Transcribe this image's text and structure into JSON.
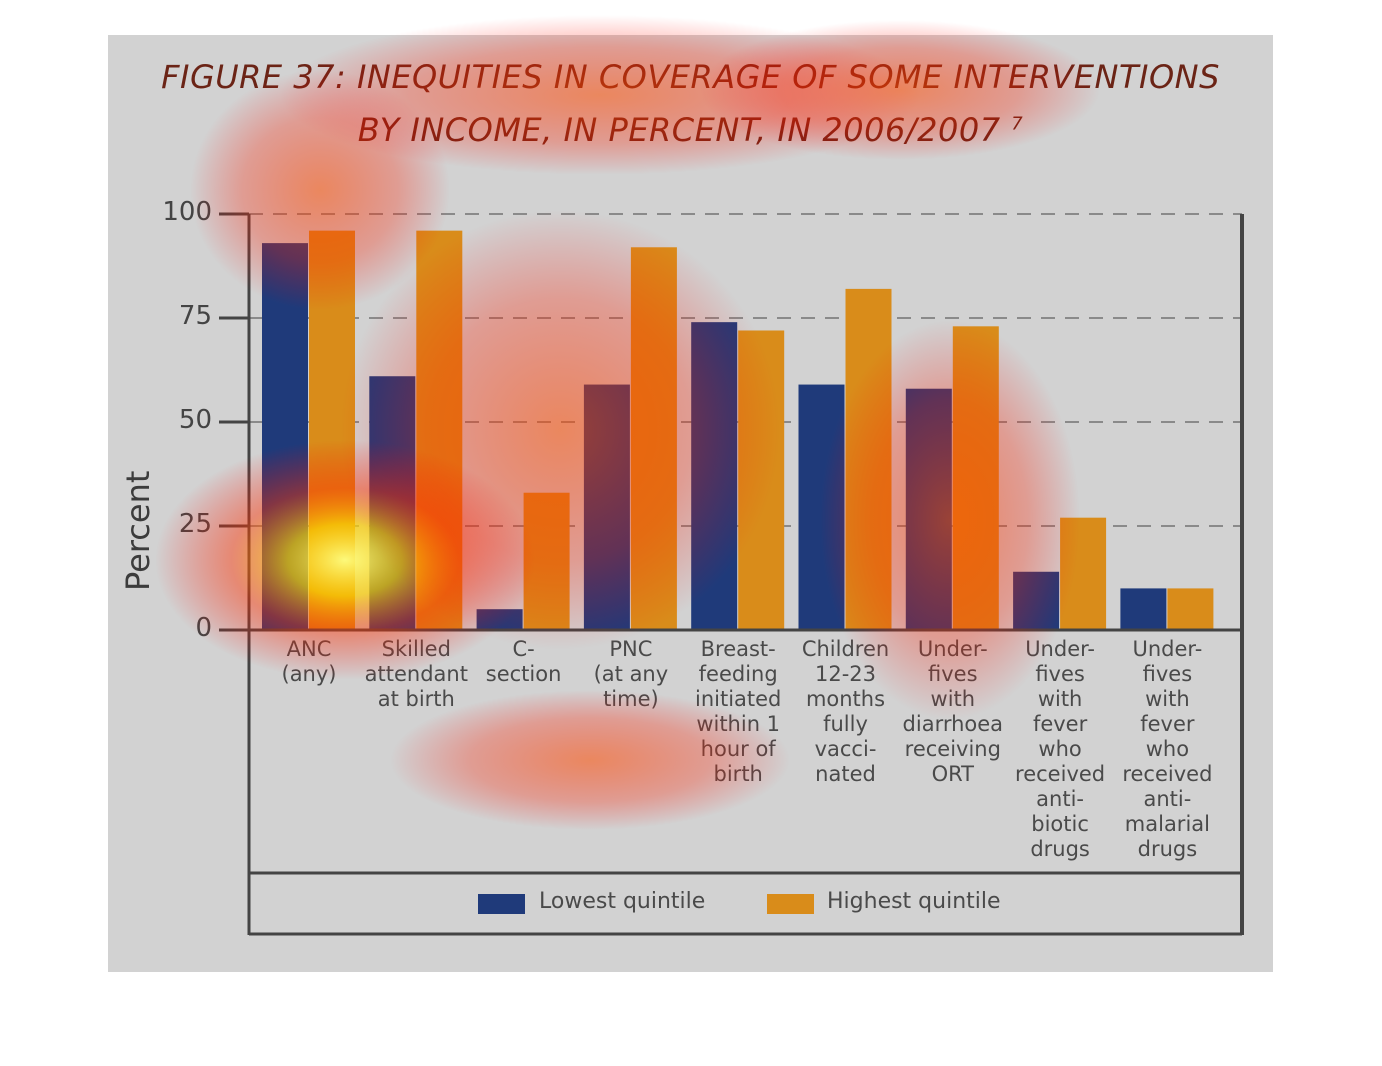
{
  "chart_data": {
    "type": "bar",
    "title_line_1": "FIGURE 37: INEQUITIES IN COVERAGE OF SOME INTERVENTIONS",
    "title_line_2": "BY INCOME, IN PERCENT, IN 2006/2007",
    "title_footnote": "7",
    "ylabel": "Percent",
    "xlabel": "",
    "ylim": [
      0,
      100
    ],
    "yticks": [
      0,
      25,
      50,
      75,
      100
    ],
    "grid": "dashed horizontal",
    "legend_position": "bottom",
    "categories": [
      "ANC\n(any)",
      "Skilled\nattendant\nat birth",
      "C-\nsection",
      "PNC\n(at any\ntime)",
      "Breast-\nfeeding\ninitiated\nwithin 1\nhour of\nbirth",
      "Children\n12-23\nmonths\nfully\nvacci-\nnated",
      "Under-\nfives\nwith\ndiarrhoea\nreceiving\nORT",
      "Under-\nfives\nwith\nfever\nwho\nreceived\nanti-\nbiotic\ndrugs",
      "Under-\nfives\nwith\nfever\nwho\nreceived\nanti-\nmalarial\ndrugs"
    ],
    "series": [
      {
        "name": "Lowest quintile",
        "color": "#1f3a7a",
        "values": [
          93,
          61,
          5,
          59,
          74,
          59,
          58,
          14,
          10
        ]
      },
      {
        "name": "Highest quintile",
        "color": "#d98c1a",
        "values": [
          96,
          96,
          33,
          92,
          72,
          82,
          73,
          27,
          10
        ]
      }
    ]
  }
}
